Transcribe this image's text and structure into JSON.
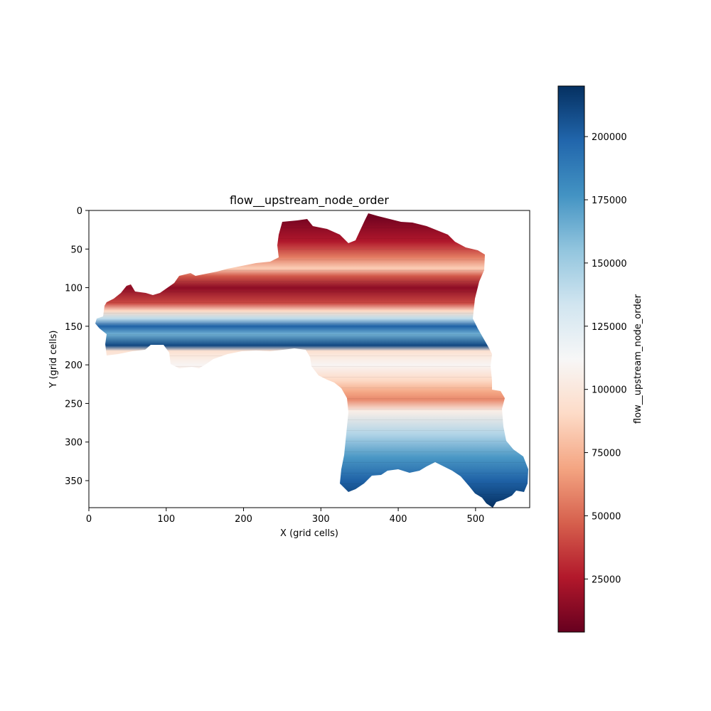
{
  "chart_data": {
    "type": "heatmap",
    "title": "flow__upstream_node_order",
    "xlabel": "X (grid cells)",
    "ylabel": "Y (grid cells)",
    "xlim": [
      0,
      570
    ],
    "ylim": [
      385,
      0
    ],
    "x_ticks": [
      0,
      100,
      200,
      300,
      400,
      500
    ],
    "y_ticks": [
      0,
      50,
      100,
      150,
      200,
      250,
      300,
      350
    ],
    "colorbar": {
      "label": "flow__upstream_node_order",
      "colormap": "RdBu",
      "range": [
        4000,
        220000
      ],
      "ticks": [
        25000,
        50000,
        75000,
        100000,
        125000,
        150000,
        175000,
        200000
      ],
      "tick_labels": [
        "25000",
        "50000",
        "75000",
        "100000",
        "125000",
        "150000",
        "175000",
        "200000"
      ]
    },
    "grid": false,
    "row_value_profile": [
      {
        "y": 10,
        "value": 8000
      },
      {
        "y": 40,
        "value": 25000
      },
      {
        "y": 60,
        "value": 55000
      },
      {
        "y": 75,
        "value": 85000
      },
      {
        "y": 85,
        "value": 45000
      },
      {
        "y": 100,
        "value": 15000
      },
      {
        "y": 120,
        "value": 40000
      },
      {
        "y": 130,
        "value": 90000
      },
      {
        "y": 140,
        "value": 140000
      },
      {
        "y": 150,
        "value": 200000
      },
      {
        "y": 160,
        "value": 165000
      },
      {
        "y": 175,
        "value": 210000
      },
      {
        "y": 182,
        "value": 95000
      },
      {
        "y": 200,
        "value": 110000
      },
      {
        "y": 220,
        "value": 90000
      },
      {
        "y": 235,
        "value": 70000
      },
      {
        "y": 245,
        "value": 60000
      },
      {
        "y": 260,
        "value": 105000
      },
      {
        "y": 290,
        "value": 145000
      },
      {
        "y": 320,
        "value": 175000
      },
      {
        "y": 350,
        "value": 200000
      },
      {
        "y": 385,
        "value": 220000
      }
    ]
  }
}
